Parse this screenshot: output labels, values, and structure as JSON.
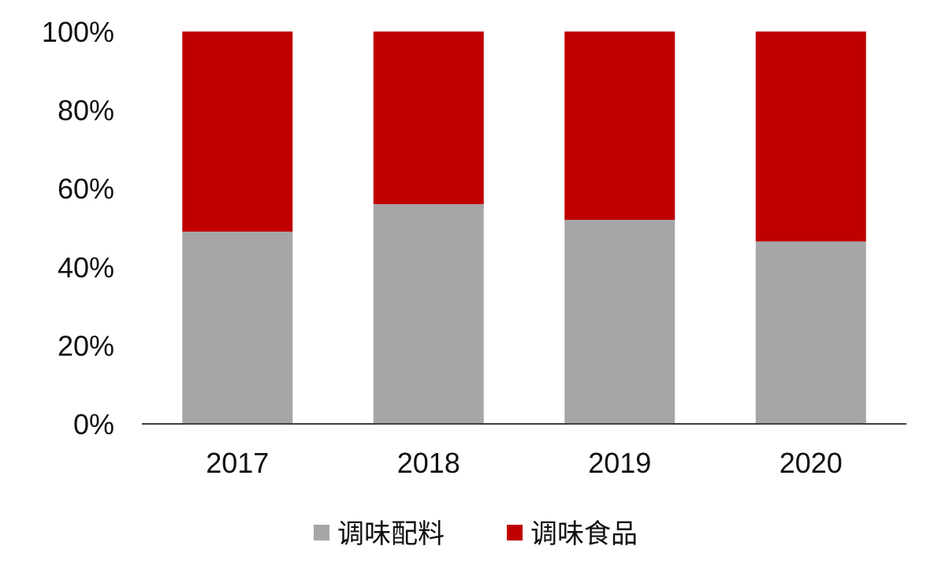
{
  "chart_data": {
    "type": "bar",
    "stacked": true,
    "categories": [
      "2017",
      "2018",
      "2019",
      "2020"
    ],
    "series": [
      {
        "name": "调味配料",
        "color": "#a6a6a6",
        "values": [
          49,
          56,
          52,
          46.5
        ]
      },
      {
        "name": "调味食品",
        "color": "#c00000",
        "values": [
          51,
          44,
          48,
          53.5
        ]
      }
    ],
    "ylim": [
      0,
      100
    ],
    "yticks": [
      "0%",
      "20%",
      "40%",
      "60%",
      "80%",
      "100%"
    ],
    "xlabel": "",
    "ylabel": "",
    "grid": false,
    "legend_position": "bottom-center"
  }
}
